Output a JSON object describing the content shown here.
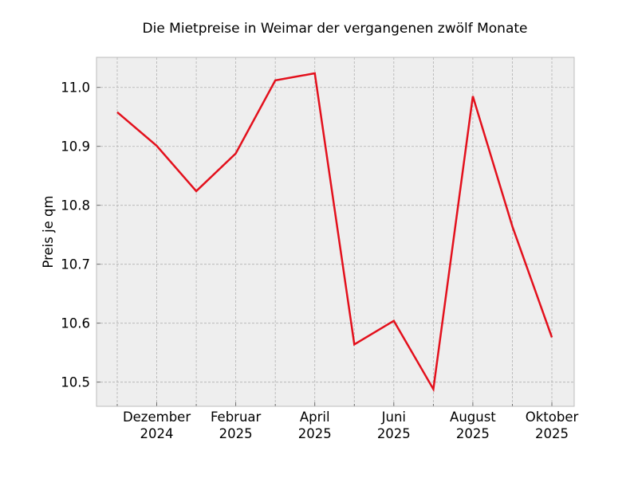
{
  "chart_data": {
    "type": "line",
    "title": "Die Mietpreise in Weimar der vergangenen zwölf Monate",
    "xlabel": "",
    "ylabel": "Preis je qm",
    "x": [
      "2024-11",
      "2024-12",
      "2025-01",
      "2025-02",
      "2025-03",
      "2025-04",
      "2025-05",
      "2025-06",
      "2025-07",
      "2025-08",
      "2025-09",
      "2025-10"
    ],
    "series": [
      {
        "name": "Mietpreis",
        "color": "#e3101c",
        "values": [
          10.958,
          10.901,
          10.824,
          10.888,
          11.012,
          11.024,
          10.564,
          10.604,
          10.488,
          10.985,
          10.764,
          10.576
        ]
      }
    ],
    "x_tick_labels": [
      {
        "line1": "Dezember",
        "line2": "2024",
        "index": 1
      },
      {
        "line1": "Februar",
        "line2": "2025",
        "index": 3
      },
      {
        "line1": "April",
        "line2": "2025",
        "index": 5
      },
      {
        "line1": "Juni",
        "line2": "2025",
        "index": 7
      },
      {
        "line1": "August",
        "line2": "2025",
        "index": 9
      },
      {
        "line1": "Oktober",
        "line2": "2025",
        "index": 11
      }
    ],
    "y_ticks": [
      10.5,
      10.6,
      10.7,
      10.8,
      10.9,
      11.0
    ],
    "y_tick_labels": [
      "10.5",
      "10.6",
      "10.7",
      "10.8",
      "10.9",
      "11.0"
    ],
    "ylim": [
      10.459,
      11.051
    ],
    "grid": true,
    "legend": null,
    "style": {
      "background": "#eeeeee",
      "grid_color": "#b0b0b0",
      "frame_color": "#bcbcbc"
    }
  }
}
